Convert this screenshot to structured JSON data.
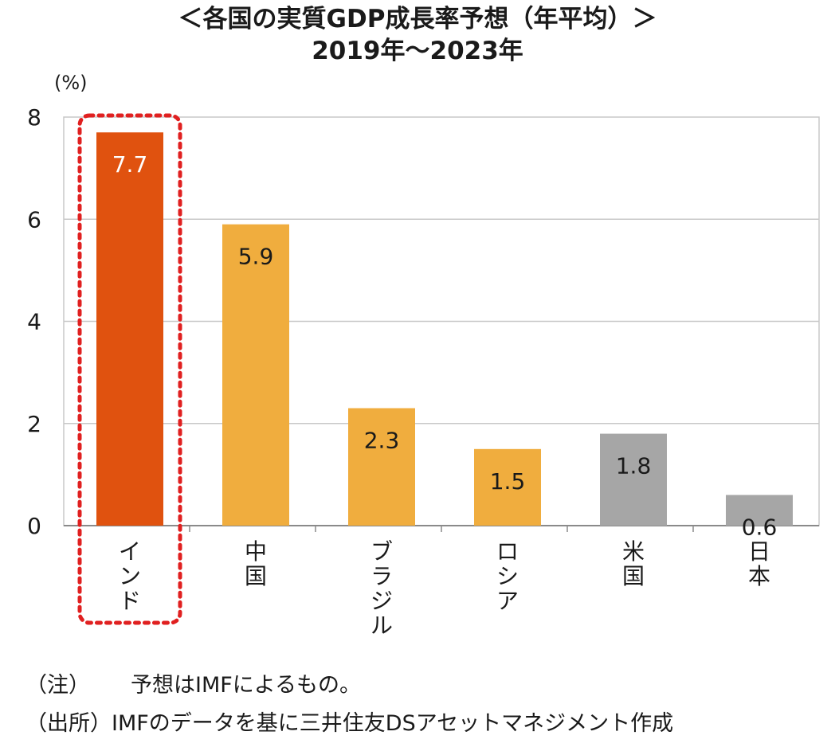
{
  "title_line1": "＜各国の実質GDP成長率予想（年平均）＞",
  "title_line2": "2019年〜2023年",
  "chart_data": {
    "type": "bar",
    "unit_label": "(%)",
    "categories": [
      "インド",
      "中国",
      "ブラジル",
      "ロシア",
      "米国",
      "日本"
    ],
    "values": [
      7.7,
      5.9,
      2.3,
      1.5,
      1.8,
      0.6
    ],
    "data_labels": [
      "7.7",
      "5.9",
      "2.3",
      "1.5",
      "1.8",
      "0.6"
    ],
    "ylim": [
      0,
      8
    ],
    "yticks": [
      "0",
      "2",
      "4",
      "6",
      "8"
    ],
    "ytick_values": [
      0,
      2,
      4,
      6,
      8
    ],
    "grid": true,
    "highlighted_category": "インド",
    "colors": {
      "highlight": "#E0520F",
      "emerging": "#F0AD3E",
      "developed": "#A6A6A6",
      "highlight_frame": "#E02020",
      "grid": "#C8C8C8"
    },
    "bar_colors": [
      "highlight",
      "emerging",
      "emerging",
      "emerging",
      "developed",
      "developed"
    ],
    "label_colors": [
      "#FFFFFF",
      "#1a1a1a",
      "#1a1a1a",
      "#1a1a1a",
      "#1a1a1a",
      "#1a1a1a"
    ]
  },
  "notes": {
    "note_label": "（注）",
    "note_text": "予想はIMFによるもの。",
    "source_label": "（出所）",
    "source_text": "IMFのデータを基に三井住友DSアセットマネジメント作成"
  }
}
